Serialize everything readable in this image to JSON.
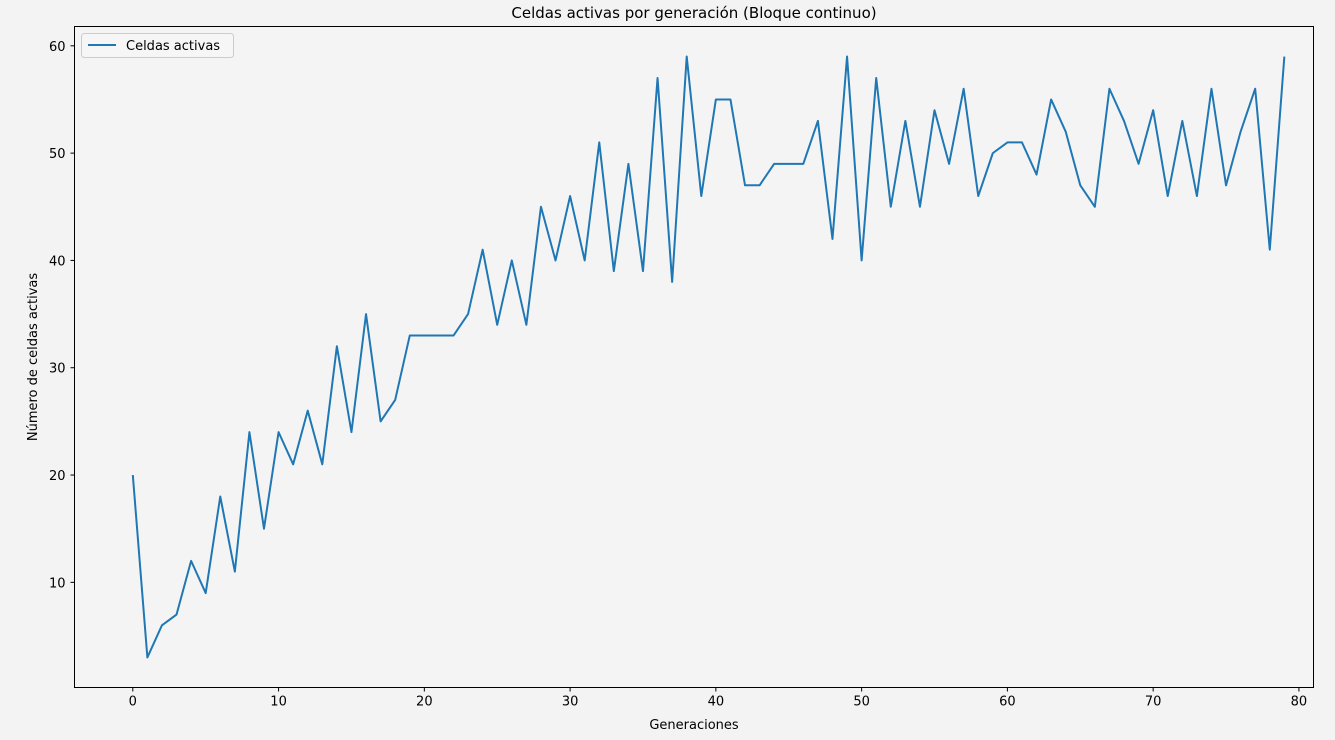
{
  "chart_data": {
    "type": "line",
    "title": "Celdas activas por generación (Bloque continuo)",
    "xlabel": "Generaciones",
    "ylabel": "Número de celdas activas",
    "xlim": [
      -4,
      81
    ],
    "ylim": [
      0.2,
      61.8
    ],
    "xticks": [
      0,
      10,
      20,
      30,
      40,
      50,
      60,
      70,
      80
    ],
    "yticks": [
      10,
      20,
      30,
      40,
      50,
      60
    ],
    "grid": false,
    "legend_position": "top-left",
    "color": "#1f77b4",
    "series": [
      {
        "name": "Celdas activas",
        "x": [
          0,
          1,
          2,
          3,
          4,
          5,
          6,
          7,
          8,
          9,
          10,
          11,
          12,
          13,
          14,
          15,
          16,
          17,
          18,
          19,
          20,
          21,
          22,
          23,
          24,
          25,
          26,
          27,
          28,
          29,
          30,
          31,
          32,
          33,
          34,
          35,
          36,
          37,
          38,
          39,
          40,
          41,
          42,
          43,
          44,
          45,
          46,
          47,
          48,
          49,
          50,
          51,
          52,
          53,
          54,
          55,
          56,
          57,
          58,
          59,
          60,
          61,
          62,
          63,
          64,
          65,
          66,
          67,
          68,
          69,
          70,
          71,
          72,
          73,
          74,
          75,
          76,
          77,
          78,
          79
        ],
        "values": [
          20,
          3,
          6,
          7,
          12,
          9,
          18,
          11,
          24,
          15,
          24,
          21,
          26,
          21,
          32,
          24,
          35,
          25,
          27,
          33,
          33,
          33,
          33,
          35,
          41,
          34,
          40,
          34,
          45,
          40,
          46,
          40,
          51,
          39,
          49,
          39,
          57,
          38,
          59,
          46,
          55,
          55,
          47,
          47,
          49,
          49,
          49,
          53,
          42,
          59,
          40,
          57,
          45,
          53,
          45,
          54,
          49,
          56,
          46,
          50,
          51,
          51,
          48,
          55,
          52,
          47,
          45,
          56,
          53,
          49,
          54,
          46,
          53,
          46,
          56,
          47,
          52,
          56,
          41,
          59
        ]
      }
    ]
  }
}
